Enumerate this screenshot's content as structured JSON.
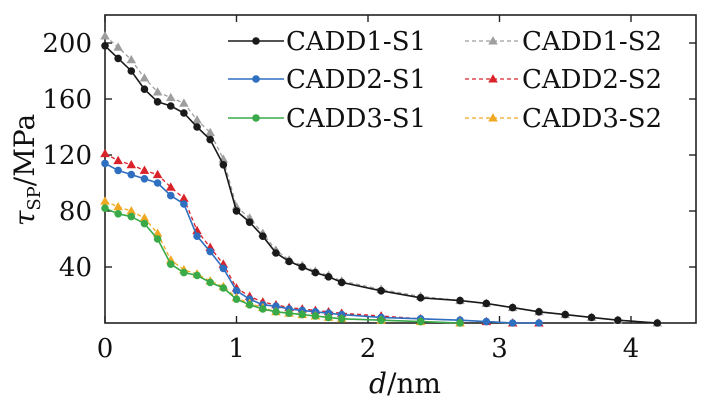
{
  "chart_data": {
    "type": "line",
    "xlabel": "d/nm",
    "ylabel": "τSP/MPa",
    "xlim": [
      0,
      4.3
    ],
    "ylim": [
      0,
      220
    ],
    "xticks": [
      0,
      1,
      2,
      3,
      4
    ],
    "yticks": [
      40,
      80,
      120,
      160,
      200
    ],
    "legend_position": "top-right",
    "series": [
      {
        "name": "CADD1-S1",
        "color": "#1a1a1a",
        "marker": "circle",
        "dash": "solid",
        "x": [
          0.0,
          0.1,
          0.2,
          0.3,
          0.4,
          0.5,
          0.6,
          0.7,
          0.8,
          0.9,
          1.0,
          1.1,
          1.2,
          1.3,
          1.4,
          1.5,
          1.6,
          1.7,
          1.8,
          2.1,
          2.4,
          2.7,
          2.9,
          3.1,
          3.3,
          3.5,
          3.7,
          3.9,
          4.2
        ],
        "y": [
          198,
          189,
          180,
          167,
          158,
          155,
          150,
          140,
          131,
          113,
          80,
          72,
          62,
          50,
          44,
          40,
          36,
          33,
          29,
          23,
          18,
          16,
          14,
          11,
          8,
          6,
          4,
          2,
          0
        ]
      },
      {
        "name": "CADD1-S2",
        "color": "#9e9e9e",
        "marker": "triangle",
        "dash": "dashed",
        "x": [
          0.0,
          0.1,
          0.2,
          0.3,
          0.4,
          0.5,
          0.6,
          0.7,
          0.8,
          0.9,
          1.0,
          1.1,
          1.2,
          1.3,
          1.4,
          1.5,
          1.6,
          1.7,
          1.8,
          2.1,
          2.4,
          2.7,
          2.9,
          3.1,
          3.3,
          3.5,
          3.7,
          3.9,
          4.2
        ],
        "y": [
          205,
          197,
          188,
          175,
          165,
          161,
          157,
          145,
          136,
          117,
          83,
          75,
          64,
          52,
          45,
          41,
          37,
          34,
          30,
          24,
          19,
          16,
          14,
          11,
          8,
          6,
          4,
          2,
          0
        ]
      },
      {
        "name": "CADD2-S1",
        "color": "#2f6fc0",
        "marker": "circle",
        "dash": "solid",
        "x": [
          0.0,
          0.1,
          0.2,
          0.3,
          0.4,
          0.5,
          0.6,
          0.7,
          0.8,
          0.9,
          1.0,
          1.1,
          1.2,
          1.3,
          1.4,
          1.5,
          1.6,
          1.7,
          1.8,
          2.1,
          2.4,
          2.7,
          2.9,
          3.1,
          3.3
        ],
        "y": [
          114,
          109,
          106,
          103,
          100,
          91,
          85,
          62,
          51,
          39,
          23,
          17,
          13,
          12,
          10,
          9,
          8,
          7,
          6,
          4,
          3,
          2,
          1,
          0,
          0
        ]
      },
      {
        "name": "CADD2-S2",
        "color": "#d9232a",
        "marker": "triangle",
        "dash": "dashed",
        "x": [
          0.0,
          0.1,
          0.2,
          0.3,
          0.4,
          0.5,
          0.6,
          0.7,
          0.8,
          0.9,
          1.0,
          1.1,
          1.2,
          1.3,
          1.4,
          1.5,
          1.6,
          1.7,
          1.8,
          2.1,
          2.4,
          2.7,
          2.9,
          3.1,
          3.3
        ],
        "y": [
          121,
          116,
          113,
          109,
          106,
          97,
          89,
          66,
          54,
          42,
          25,
          19,
          15,
          13,
          11,
          10,
          9,
          8,
          7,
          5,
          3,
          2,
          1,
          0,
          0
        ]
      },
      {
        "name": "CADD3-S1",
        "color": "#3aaa48",
        "marker": "circle",
        "dash": "solid",
        "x": [
          0.0,
          0.1,
          0.2,
          0.3,
          0.4,
          0.5,
          0.6,
          0.7,
          0.8,
          0.9,
          1.0,
          1.1,
          1.2,
          1.3,
          1.4,
          1.5,
          1.6,
          1.7,
          1.8,
          2.1,
          2.4,
          2.7
        ],
        "y": [
          82,
          78,
          76,
          71,
          60,
          42,
          36,
          34,
          29,
          25,
          17,
          13,
          10,
          8,
          7,
          6,
          5,
          4,
          3,
          2,
          1,
          0
        ]
      },
      {
        "name": "CADD3-S2",
        "color": "#f0a820",
        "marker": "triangle",
        "dash": "dashed",
        "x": [
          0.0,
          0.1,
          0.2,
          0.3,
          0.4,
          0.5,
          0.6,
          0.7,
          0.8,
          0.9,
          1.0,
          1.1,
          1.2,
          1.3,
          1.4,
          1.5,
          1.6,
          1.7,
          1.8,
          2.1,
          2.4,
          2.7
        ],
        "y": [
          87,
          83,
          80,
          75,
          64,
          45,
          38,
          35,
          30,
          26,
          18,
          14,
          11,
          8,
          7,
          6,
          5,
          4,
          3,
          2,
          1,
          0
        ]
      }
    ]
  }
}
